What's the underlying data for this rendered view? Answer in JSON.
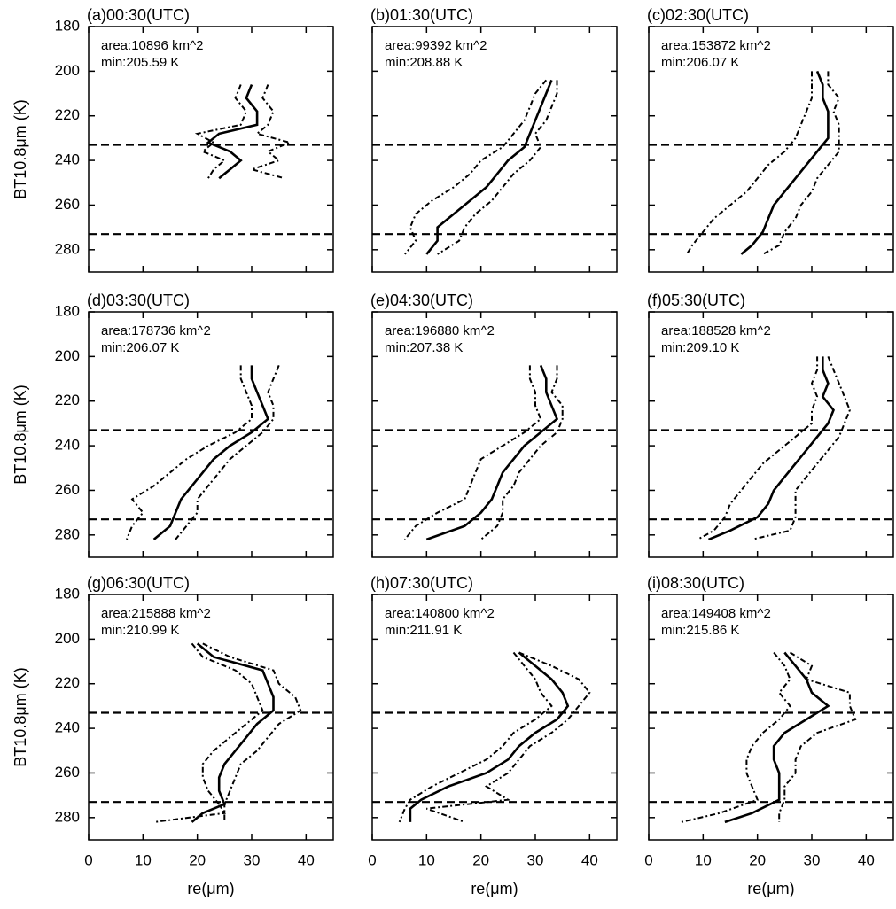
{
  "chart_data": [
    {
      "type": "line",
      "title": "(a)00:30(UTC)",
      "annotations": [
        "area:10896 km^2",
        "min:205.59 K"
      ],
      "ylabel": "BT10.8μm (K)",
      "xlim": [
        0,
        45
      ],
      "xticks": [
        0,
        10,
        20,
        30,
        40
      ],
      "ylim": [
        290,
        180
      ],
      "yticks": [
        180,
        200,
        220,
        240,
        260,
        280
      ],
      "x_ticklabels": false,
      "y_ticklabels": true,
      "hlines": [
        233,
        273
      ],
      "y": [
        206,
        212,
        218,
        224,
        228,
        232,
        236,
        240,
        244,
        248
      ],
      "series": [
        {
          "color": "#000",
          "dash": false,
          "values": [
            30,
            29,
            31,
            31,
            24,
            22,
            26,
            28,
            26,
            24
          ]
        },
        {
          "color": "#000",
          "dash": true,
          "values": [
            28,
            27,
            29,
            28,
            20,
            23,
            21,
            25,
            23,
            22
          ]
        },
        {
          "color": "#000",
          "dash": true,
          "values": [
            33,
            32,
            34,
            33,
            31,
            37,
            33,
            35,
            30,
            36
          ]
        }
      ]
    },
    {
      "type": "line",
      "title": "(b)01:30(UTC)",
      "annotations": [
        "area:99392 km^2",
        "min:208.88 K"
      ],
      "xlim": [
        0,
        45
      ],
      "xticks": [
        0,
        10,
        20,
        30,
        40
      ],
      "ylim": [
        290,
        180
      ],
      "yticks": [
        180,
        200,
        220,
        240,
        260,
        280
      ],
      "x_ticklabels": false,
      "y_ticklabels": false,
      "hlines": [
        233,
        273
      ],
      "y": [
        204,
        210,
        216,
        222,
        228,
        234,
        240,
        246,
        252,
        258,
        264,
        270,
        276,
        282
      ],
      "series": [
        {
          "color": "#000",
          "dash": false,
          "values": [
            33,
            32,
            31,
            30,
            29,
            28,
            25,
            23,
            21,
            18,
            15,
            12,
            12,
            10
          ]
        },
        {
          "color": "#000",
          "dash": true,
          "values": [
            32,
            30,
            29,
            28,
            26,
            24,
            20,
            18,
            15,
            11,
            8,
            7,
            8,
            6
          ]
        },
        {
          "color": "#000",
          "dash": true,
          "values": [
            34,
            34,
            33,
            32,
            30,
            31,
            29,
            26,
            24,
            22,
            19,
            17,
            16,
            12
          ]
        }
      ]
    },
    {
      "type": "line",
      "title": "(c)02:30(UTC)",
      "annotations": [
        "area:153872 km^2",
        "min:206.07 K"
      ],
      "xlim": [
        0,
        45
      ],
      "xticks": [
        0,
        10,
        20,
        30,
        40
      ],
      "ylim": [
        290,
        180
      ],
      "yticks": [
        180,
        200,
        220,
        240,
        260,
        280
      ],
      "x_ticklabels": false,
      "y_ticklabels": false,
      "hlines": [
        233,
        273
      ],
      "y": [
        200,
        206,
        212,
        218,
        224,
        230,
        236,
        242,
        248,
        254,
        260,
        266,
        272,
        278,
        282
      ],
      "series": [
        {
          "color": "#000",
          "dash": false,
          "values": [
            31,
            32,
            32,
            33,
            33,
            33,
            31,
            29,
            27,
            25,
            23,
            22,
            21,
            19,
            17
          ]
        },
        {
          "color": "#000",
          "dash": true,
          "values": [
            30,
            30,
            30,
            29,
            28,
            27,
            25,
            22,
            20,
            18,
            15,
            12,
            10,
            8,
            7
          ]
        },
        {
          "color": "#000",
          "dash": true,
          "values": [
            33,
            33,
            35,
            34,
            35,
            35,
            35,
            33,
            31,
            30,
            28,
            27,
            25,
            24,
            21
          ]
        }
      ]
    },
    {
      "type": "line",
      "title": "(d)03:30(UTC)",
      "annotations": [
        "area:178736 km^2",
        "min:206.07 K"
      ],
      "ylabel": "BT10.8μm (K)",
      "xlim": [
        0,
        45
      ],
      "xticks": [
        0,
        10,
        20,
        30,
        40
      ],
      "ylim": [
        290,
        180
      ],
      "yticks": [
        180,
        200,
        220,
        240,
        260,
        280
      ],
      "x_ticklabels": false,
      "y_ticklabels": true,
      "hlines": [
        233,
        273
      ],
      "y": [
        204,
        210,
        216,
        222,
        228,
        234,
        240,
        246,
        252,
        258,
        264,
        270,
        276,
        282
      ],
      "series": [
        {
          "color": "#000",
          "dash": false,
          "values": [
            30,
            30,
            31,
            32,
            33,
            30,
            26,
            23,
            21,
            19,
            17,
            16,
            15,
            12
          ]
        },
        {
          "color": "#000",
          "dash": true,
          "values": [
            28,
            28,
            29,
            30,
            30,
            27,
            22,
            18,
            15,
            12,
            8,
            10,
            8,
            7
          ]
        },
        {
          "color": "#000",
          "dash": true,
          "values": [
            35,
            34,
            33,
            34,
            34,
            32,
            29,
            26,
            24,
            22,
            20,
            20,
            18,
            16
          ]
        }
      ]
    },
    {
      "type": "line",
      "title": "(e)04:30(UTC)",
      "annotations": [
        "area:196880 km^2",
        "min:207.38 K"
      ],
      "xlim": [
        0,
        45
      ],
      "xticks": [
        0,
        10,
        20,
        30,
        40
      ],
      "ylim": [
        290,
        180
      ],
      "yticks": [
        180,
        200,
        220,
        240,
        260,
        280
      ],
      "x_ticklabels": false,
      "y_ticklabels": false,
      "hlines": [
        233,
        273
      ],
      "y": [
        204,
        210,
        216,
        222,
        228,
        234,
        240,
        246,
        252,
        258,
        264,
        270,
        276,
        282
      ],
      "series": [
        {
          "color": "#000",
          "dash": false,
          "values": [
            31,
            32,
            32,
            33,
            34,
            31,
            28,
            26,
            24,
            23,
            22,
            20,
            17,
            10
          ]
        },
        {
          "color": "#000",
          "dash": true,
          "values": [
            29,
            29,
            30,
            30,
            31,
            28,
            24,
            20,
            19,
            18,
            17,
            12,
            8,
            6
          ]
        },
        {
          "color": "#000",
          "dash": true,
          "values": [
            34,
            34,
            33,
            35,
            35,
            34,
            31,
            29,
            27,
            26,
            24,
            24,
            23,
            20
          ]
        }
      ]
    },
    {
      "type": "line",
      "title": "(f)05:30(UTC)",
      "annotations": [
        "area:188528 km^2",
        "min:209.10 K"
      ],
      "xlim": [
        0,
        45
      ],
      "xticks": [
        0,
        10,
        20,
        30,
        40
      ],
      "ylim": [
        290,
        180
      ],
      "yticks": [
        180,
        200,
        220,
        240,
        260,
        280
      ],
      "x_ticklabels": false,
      "y_ticklabels": false,
      "hlines": [
        233,
        273
      ],
      "y": [
        200,
        206,
        212,
        218,
        224,
        230,
        236,
        242,
        248,
        254,
        260,
        266,
        272,
        278,
        282
      ],
      "series": [
        {
          "color": "#000",
          "dash": false,
          "values": [
            32,
            32,
            33,
            32,
            34,
            33,
            31,
            29,
            27,
            25,
            23,
            22,
            20,
            15,
            11
          ]
        },
        {
          "color": "#000",
          "dash": true,
          "values": [
            31,
            31,
            30,
            31,
            30,
            30,
            27,
            24,
            21,
            19,
            17,
            15,
            14,
            12,
            9
          ]
        },
        {
          "color": "#000",
          "dash": true,
          "values": [
            33,
            34,
            35,
            36,
            37,
            36,
            35,
            33,
            31,
            29,
            27,
            27,
            27,
            26,
            19
          ]
        }
      ]
    },
    {
      "type": "line",
      "title": "(g)06:30(UTC)",
      "annotations": [
        "area:215888 km^2",
        "min:210.99 K"
      ],
      "ylabel": "BT10.8μm (K)",
      "xlabel": "re(μm)",
      "xlim": [
        0,
        45
      ],
      "xticks": [
        0,
        10,
        20,
        30,
        40
      ],
      "ylim": [
        290,
        180
      ],
      "yticks": [
        180,
        200,
        220,
        240,
        260,
        280
      ],
      "x_ticklabels": true,
      "y_ticklabels": true,
      "hlines": [
        233,
        273
      ],
      "y": [
        202,
        208,
        214,
        220,
        226,
        232,
        238,
        244,
        250,
        256,
        262,
        268,
        274,
        278,
        282
      ],
      "series": [
        {
          "color": "#000",
          "dash": false,
          "values": [
            20,
            23,
            32,
            33,
            34,
            34,
            31,
            29,
            27,
            25,
            24,
            24,
            25,
            21,
            19
          ]
        },
        {
          "color": "#000",
          "dash": true,
          "values": [
            19,
            21,
            27,
            30,
            31,
            32,
            29,
            26,
            23,
            21,
            21,
            22,
            24,
            25,
            12
          ]
        },
        {
          "color": "#000",
          "dash": true,
          "values": [
            21,
            26,
            34,
            35,
            38,
            39,
            35,
            33,
            31,
            28,
            27,
            26,
            25,
            25,
            25
          ]
        }
      ]
    },
    {
      "type": "line",
      "title": "(h)07:30(UTC)",
      "annotations": [
        "area:140800 km^2",
        "min:211.91 K"
      ],
      "xlabel": "re(μm)",
      "xlim": [
        0,
        45
      ],
      "xticks": [
        0,
        10,
        20,
        30,
        40
      ],
      "ylim": [
        290,
        180
      ],
      "yticks": [
        180,
        200,
        220,
        240,
        260,
        280
      ],
      "x_ticklabels": true,
      "y_ticklabels": false,
      "hlines": [
        233,
        273
      ],
      "y": [
        206,
        212,
        218,
        224,
        230,
        236,
        242,
        248,
        254,
        260,
        266,
        272,
        276,
        282
      ],
      "series": [
        {
          "color": "#000",
          "dash": false,
          "values": [
            27,
            30,
            33,
            35,
            36,
            34,
            30,
            27,
            25,
            21,
            14,
            9,
            7,
            7
          ]
        },
        {
          "color": "#000",
          "dash": true,
          "values": [
            26,
            28,
            30,
            31,
            33,
            30,
            26,
            24,
            21,
            16,
            11,
            7,
            6,
            5
          ]
        },
        {
          "color": "#000",
          "dash": true,
          "values": [
            27,
            33,
            38,
            40,
            38,
            36,
            33,
            29,
            27,
            25,
            21,
            25,
            10,
            17
          ]
        }
      ]
    },
    {
      "type": "line",
      "title": "(i)08:30(UTC)",
      "annotations": [
        "area:149408 km^2",
        "min:215.86 K"
      ],
      "xlabel": "re(μm)",
      "xlim": [
        0,
        45
      ],
      "xticks": [
        0,
        10,
        20,
        30,
        40
      ],
      "ylim": [
        290,
        180
      ],
      "yticks": [
        180,
        200,
        220,
        240,
        260,
        280
      ],
      "x_ticklabels": true,
      "y_ticklabels": false,
      "hlines": [
        233,
        273
      ],
      "y": [
        206,
        212,
        218,
        224,
        230,
        236,
        242,
        248,
        254,
        260,
        266,
        272,
        278,
        282
      ],
      "series": [
        {
          "color": "#000",
          "dash": false,
          "values": [
            25,
            27,
            29,
            30,
            33,
            29,
            25,
            23,
            23,
            24,
            24,
            24,
            19,
            14
          ]
        },
        {
          "color": "#000",
          "dash": true,
          "values": [
            23,
            25,
            26,
            24,
            26,
            24,
            21,
            19,
            18,
            18,
            19,
            20,
            13,
            6
          ]
        },
        {
          "color": "#000",
          "dash": true,
          "values": [
            26,
            30,
            29,
            37,
            37,
            38,
            31,
            28,
            27,
            27,
            25,
            25,
            24,
            24
          ]
        }
      ]
    }
  ]
}
